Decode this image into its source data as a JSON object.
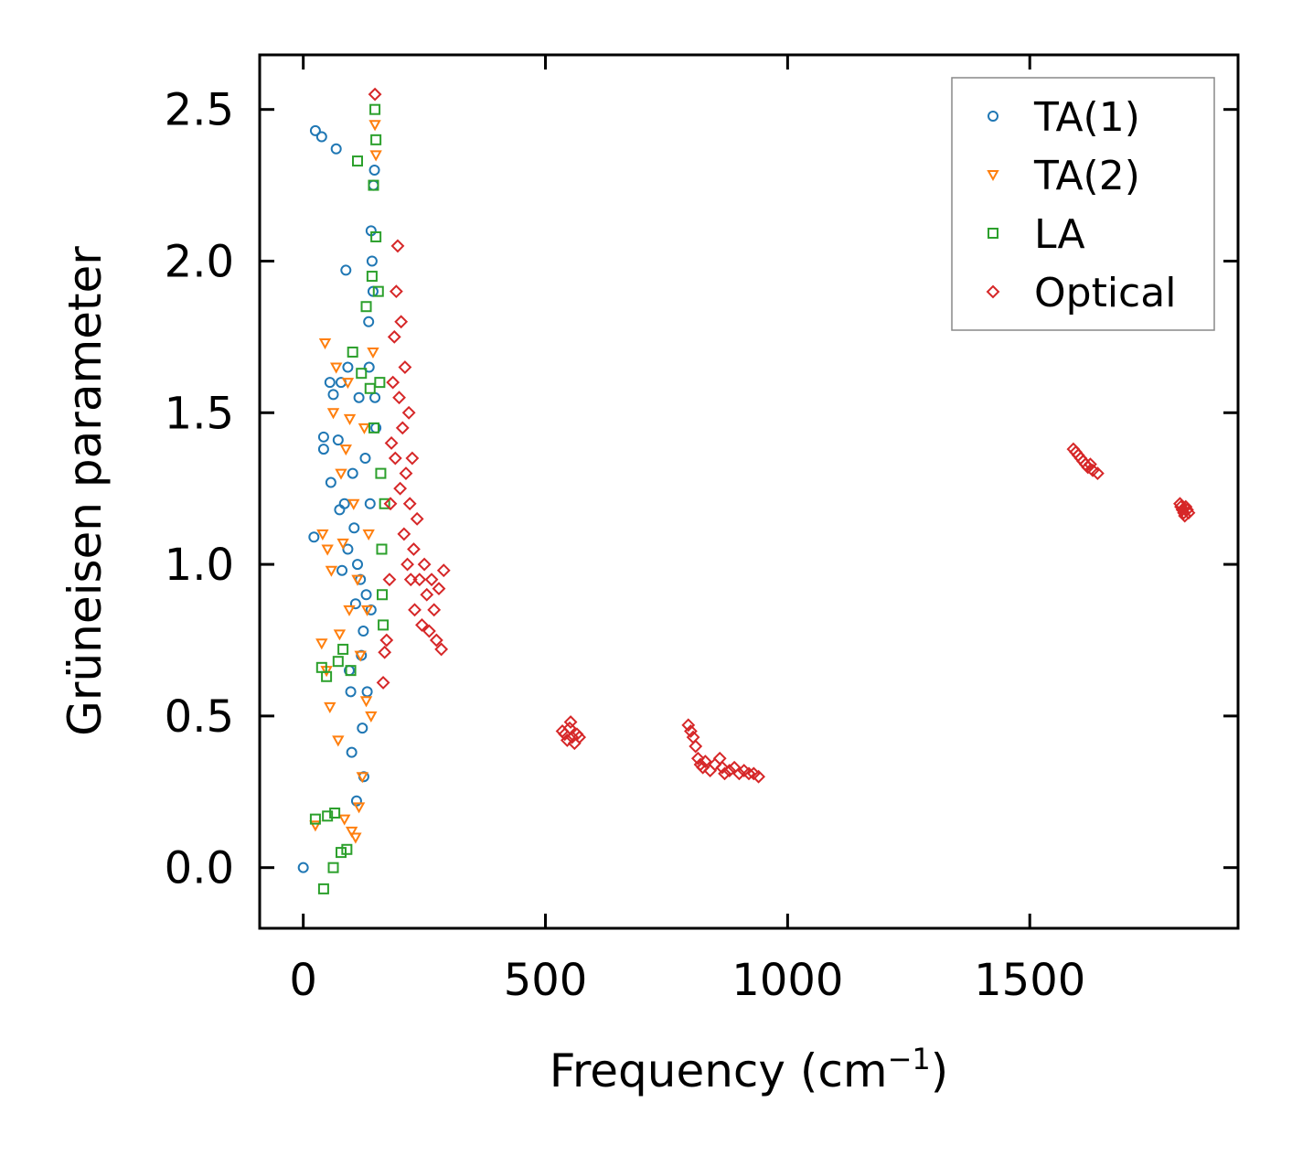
{
  "chart_data": {
    "type": "scatter",
    "title": "",
    "xlabel": "Frequency (cm",
    "xlabel_sup": "−1",
    "xlabel_close": ")",
    "ylabel": "Grüneisen parameter",
    "xlim": [
      -90,
      1930
    ],
    "ylim": [
      -0.2,
      2.68
    ],
    "xticks": [
      0,
      500,
      1000,
      1500
    ],
    "xtick_labels": [
      "0",
      "500",
      "1000",
      "1500"
    ],
    "yticks": [
      0.0,
      0.5,
      1.0,
      1.5,
      2.0,
      2.5
    ],
    "ytick_labels": [
      "0.0",
      "0.5",
      "1.0",
      "1.5",
      "2.0",
      "2.5"
    ],
    "legend_position": "top-right",
    "series": [
      {
        "name": "TA(1)",
        "marker": "circle",
        "color": "#1f77b4",
        "points": [
          [
            0,
            0.0
          ],
          [
            22,
            1.09
          ],
          [
            25,
            2.43
          ],
          [
            38,
            2.41
          ],
          [
            42,
            1.42
          ],
          [
            42,
            1.38
          ],
          [
            55,
            1.6
          ],
          [
            57,
            1.27
          ],
          [
            62,
            1.56
          ],
          [
            68,
            2.37
          ],
          [
            72,
            1.41
          ],
          [
            75,
            1.18
          ],
          [
            78,
            1.6
          ],
          [
            80,
            0.98
          ],
          [
            88,
            1.97
          ],
          [
            92,
            1.65
          ],
          [
            95,
            0.65
          ],
          [
            98,
            0.58
          ],
          [
            100,
            0.38
          ],
          [
            105,
            1.12
          ],
          [
            108,
            0.87
          ],
          [
            110,
            0.22
          ],
          [
            115,
            1.55
          ],
          [
            118,
            0.95
          ],
          [
            120,
            0.7
          ],
          [
            122,
            0.46
          ],
          [
            125,
            0.3
          ],
          [
            128,
            1.35
          ],
          [
            130,
            0.9
          ],
          [
            132,
            0.58
          ],
          [
            135,
            1.8
          ],
          [
            138,
            1.2
          ],
          [
            140,
            0.85
          ],
          [
            142,
            2.0
          ],
          [
            145,
            2.25
          ],
          [
            147,
            2.3
          ],
          [
            148,
            1.55
          ],
          [
            150,
            1.45
          ],
          [
            85,
            1.2
          ],
          [
            92,
            1.05
          ],
          [
            102,
            1.3
          ],
          [
            112,
            1.0
          ],
          [
            124,
            0.78
          ],
          [
            136,
            1.65
          ],
          [
            140,
            2.1
          ],
          [
            144,
            1.9
          ]
        ]
      },
      {
        "name": "TA(2)",
        "marker": "triangle-down",
        "color": "#ff7f0e",
        "points": [
          [
            25,
            0.14
          ],
          [
            38,
            0.74
          ],
          [
            40,
            1.1
          ],
          [
            45,
            1.73
          ],
          [
            48,
            0.65
          ],
          [
            50,
            1.05
          ],
          [
            55,
            0.53
          ],
          [
            58,
            0.98
          ],
          [
            62,
            1.5
          ],
          [
            68,
            1.65
          ],
          [
            72,
            0.42
          ],
          [
            75,
            0.77
          ],
          [
            78,
            1.3
          ],
          [
            82,
            1.07
          ],
          [
            85,
            0.16
          ],
          [
            88,
            1.38
          ],
          [
            92,
            1.6
          ],
          [
            95,
            0.85
          ],
          [
            100,
            0.12
          ],
          [
            104,
            1.2
          ],
          [
            108,
            0.1
          ],
          [
            112,
            0.95
          ],
          [
            118,
            0.7
          ],
          [
            122,
            0.3
          ],
          [
            126,
            1.45
          ],
          [
            130,
            0.55
          ],
          [
            135,
            1.1
          ],
          [
            140,
            0.5
          ],
          [
            144,
            1.7
          ],
          [
            148,
            2.45
          ],
          [
            150,
            2.35
          ],
          [
            96,
            1.48
          ],
          [
            115,
            0.2
          ],
          [
            132,
            0.85
          ]
        ]
      },
      {
        "name": "LA",
        "marker": "square",
        "color": "#2ca02c",
        "points": [
          [
            25,
            0.16
          ],
          [
            38,
            0.66
          ],
          [
            42,
            -0.07
          ],
          [
            48,
            0.63
          ],
          [
            50,
            0.17
          ],
          [
            62,
            0.0
          ],
          [
            65,
            0.18
          ],
          [
            72,
            0.68
          ],
          [
            78,
            0.05
          ],
          [
            82,
            0.72
          ],
          [
            90,
            0.06
          ],
          [
            98,
            0.65
          ],
          [
            102,
            1.7
          ],
          [
            112,
            2.33
          ],
          [
            120,
            1.63
          ],
          [
            130,
            1.85
          ],
          [
            138,
            1.58
          ],
          [
            142,
            1.95
          ],
          [
            145,
            2.25
          ],
          [
            148,
            2.5
          ],
          [
            150,
            2.08
          ],
          [
            155,
            1.9
          ],
          [
            158,
            1.6
          ],
          [
            160,
            1.3
          ],
          [
            162,
            1.05
          ],
          [
            163,
            0.9
          ],
          [
            165,
            0.8
          ],
          [
            150,
            2.4
          ],
          [
            146,
            1.45
          ],
          [
            168,
            1.2
          ]
        ]
      },
      {
        "name": "Optical",
        "marker": "diamond",
        "color": "#d62728",
        "points": [
          [
            148,
            2.55
          ],
          [
            165,
            0.61
          ],
          [
            168,
            0.71
          ],
          [
            172,
            0.75
          ],
          [
            178,
            0.95
          ],
          [
            180,
            1.2
          ],
          [
            182,
            1.4
          ],
          [
            185,
            1.6
          ],
          [
            188,
            1.75
          ],
          [
            190,
            1.35
          ],
          [
            192,
            1.9
          ],
          [
            195,
            2.05
          ],
          [
            198,
            1.55
          ],
          [
            200,
            1.25
          ],
          [
            202,
            1.8
          ],
          [
            205,
            1.45
          ],
          [
            208,
            1.1
          ],
          [
            210,
            1.65
          ],
          [
            212,
            1.3
          ],
          [
            215,
            1.0
          ],
          [
            218,
            1.5
          ],
          [
            220,
            1.2
          ],
          [
            222,
            0.95
          ],
          [
            225,
            1.35
          ],
          [
            228,
            1.05
          ],
          [
            230,
            0.85
          ],
          [
            235,
            1.15
          ],
          [
            240,
            0.95
          ],
          [
            245,
            0.8
          ],
          [
            250,
            1.0
          ],
          [
            255,
            0.9
          ],
          [
            260,
            0.78
          ],
          [
            265,
            0.95
          ],
          [
            270,
            0.85
          ],
          [
            275,
            0.75
          ],
          [
            280,
            0.92
          ],
          [
            285,
            0.72
          ],
          [
            290,
            0.98
          ],
          [
            535,
            0.45
          ],
          [
            540,
            0.44
          ],
          [
            545,
            0.42
          ],
          [
            550,
            0.46
          ],
          [
            555,
            0.43
          ],
          [
            560,
            0.41
          ],
          [
            565,
            0.44
          ],
          [
            552,
            0.48
          ],
          [
            570,
            0.43
          ],
          [
            795,
            0.47
          ],
          [
            800,
            0.45
          ],
          [
            805,
            0.43
          ],
          [
            810,
            0.4
          ],
          [
            815,
            0.36
          ],
          [
            820,
            0.34
          ],
          [
            825,
            0.33
          ],
          [
            830,
            0.35
          ],
          [
            840,
            0.32
          ],
          [
            850,
            0.34
          ],
          [
            860,
            0.36
          ],
          [
            865,
            0.33
          ],
          [
            870,
            0.31
          ],
          [
            880,
            0.32
          ],
          [
            890,
            0.33
          ],
          [
            900,
            0.31
          ],
          [
            910,
            0.32
          ],
          [
            920,
            0.31
          ],
          [
            930,
            0.31
          ],
          [
            940,
            0.3
          ],
          [
            1590,
            1.38
          ],
          [
            1595,
            1.37
          ],
          [
            1600,
            1.36
          ],
          [
            1605,
            1.35
          ],
          [
            1610,
            1.34
          ],
          [
            1615,
            1.33
          ],
          [
            1620,
            1.32
          ],
          [
            1625,
            1.33
          ],
          [
            1630,
            1.31
          ],
          [
            1640,
            1.3
          ],
          [
            1810,
            1.2
          ],
          [
            1812,
            1.19
          ],
          [
            1815,
            1.18
          ],
          [
            1818,
            1.17
          ],
          [
            1820,
            1.16
          ],
          [
            1822,
            1.19
          ],
          [
            1825,
            1.18
          ],
          [
            1828,
            1.17
          ]
        ]
      }
    ]
  }
}
